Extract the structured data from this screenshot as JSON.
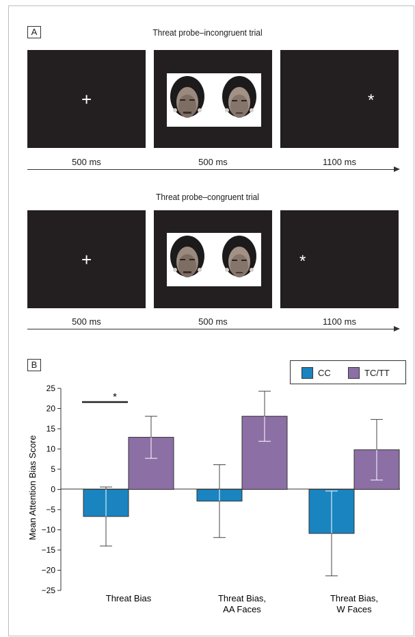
{
  "panel_a": {
    "label": "A",
    "trials": [
      {
        "title": "Threat probe–incongruent trial",
        "fixation": "+",
        "probe": "*",
        "probe_side": "right",
        "durations": [
          "500 ms",
          "500 ms",
          "1100 ms"
        ]
      },
      {
        "title": "Threat probe–congruent trial",
        "fixation": "+",
        "probe": "*",
        "probe_side": "left",
        "durations": [
          "500 ms",
          "500 ms",
          "1100 ms"
        ]
      }
    ]
  },
  "panel_b": {
    "label": "B",
    "legend": [
      {
        "name": "CC",
        "color": "#1a84c0"
      },
      {
        "name": "TC/TT",
        "color": "#8c6fa5"
      }
    ],
    "significance_marker": "*"
  },
  "chart_data": {
    "type": "bar",
    "categories": [
      [
        "Threat Bias"
      ],
      [
        "Threat Bias,",
        "AA Faces"
      ],
      [
        "Threat Bias,",
        "W Faces"
      ]
    ],
    "series": [
      {
        "name": "CC",
        "color": "#1a84c0",
        "values": [
          -6.7,
          -2.9,
          -10.9
        ],
        "error": [
          7.3,
          9.0,
          10.5
        ]
      },
      {
        "name": "TC/TT",
        "color": "#8c6fa5",
        "values": [
          12.9,
          18.1,
          9.8
        ],
        "error": [
          5.2,
          6.2,
          7.5
        ]
      }
    ],
    "ylabel": "Mean Attention Bias Score",
    "ylim": [
      -25,
      25
    ],
    "yticks": [
      25,
      20,
      15,
      10,
      5,
      0,
      -5,
      -10,
      -15,
      -20,
      -25
    ],
    "ytick_labels": [
      "25",
      "20",
      "15",
      "10",
      "5",
      "0",
      "−5",
      "−10",
      "−15",
      "−20",
      "−25"
    ],
    "grid": false,
    "legend_position": "top-right"
  }
}
